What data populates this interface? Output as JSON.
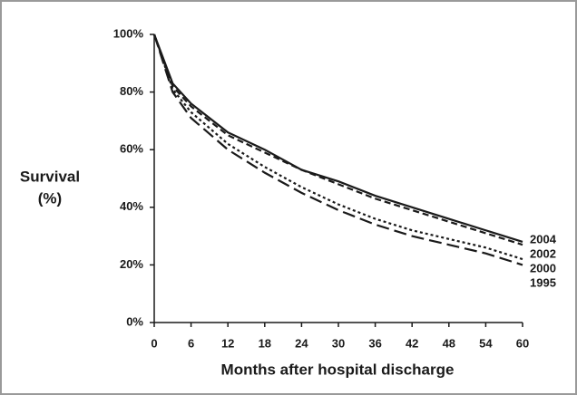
{
  "chart_data": {
    "type": "line",
    "x_label": "Months after hospital discharge",
    "y_label": [
      "Survival",
      "(%)"
    ],
    "x": [
      0,
      3,
      6,
      12,
      18,
      24,
      30,
      36,
      42,
      48,
      54,
      60
    ],
    "series": [
      {
        "name": "2004",
        "color": "#1a1a1a",
        "dash": "solid",
        "values": [
          100,
          83,
          76,
          66,
          60,
          53,
          49,
          44,
          40,
          36,
          32,
          28
        ]
      },
      {
        "name": "2002",
        "color": "#1a1a1a",
        "dash": "dashed",
        "values": [
          100,
          82,
          75,
          65,
          59,
          53,
          48,
          43,
          39,
          35,
          31,
          27
        ]
      },
      {
        "name": "2000",
        "color": "#1a1a1a",
        "dash": "dotted",
        "values": [
          100,
          81,
          73,
          62,
          54,
          47,
          41,
          36,
          32,
          29,
          26,
          22
        ]
      },
      {
        "name": "1995",
        "color": "#1a1a1a",
        "dash": "longdash",
        "values": [
          100,
          80,
          71,
          60,
          52,
          45,
          39,
          34,
          30,
          27,
          24,
          20
        ]
      }
    ],
    "xlim": [
      0,
      60
    ],
    "xticks": [
      0,
      6,
      12,
      18,
      24,
      30,
      36,
      42,
      48,
      54,
      60
    ],
    "ylim": [
      0,
      100
    ],
    "yticks": [
      {
        "value": 0,
        "label": "0%"
      },
      {
        "value": 20,
        "label": "20%"
      },
      {
        "value": 40,
        "label": "40%"
      },
      {
        "value": 60,
        "label": "60%"
      },
      {
        "value": 80,
        "label": "80%"
      },
      {
        "value": 100,
        "label": "100%"
      }
    ],
    "grid": false
  }
}
